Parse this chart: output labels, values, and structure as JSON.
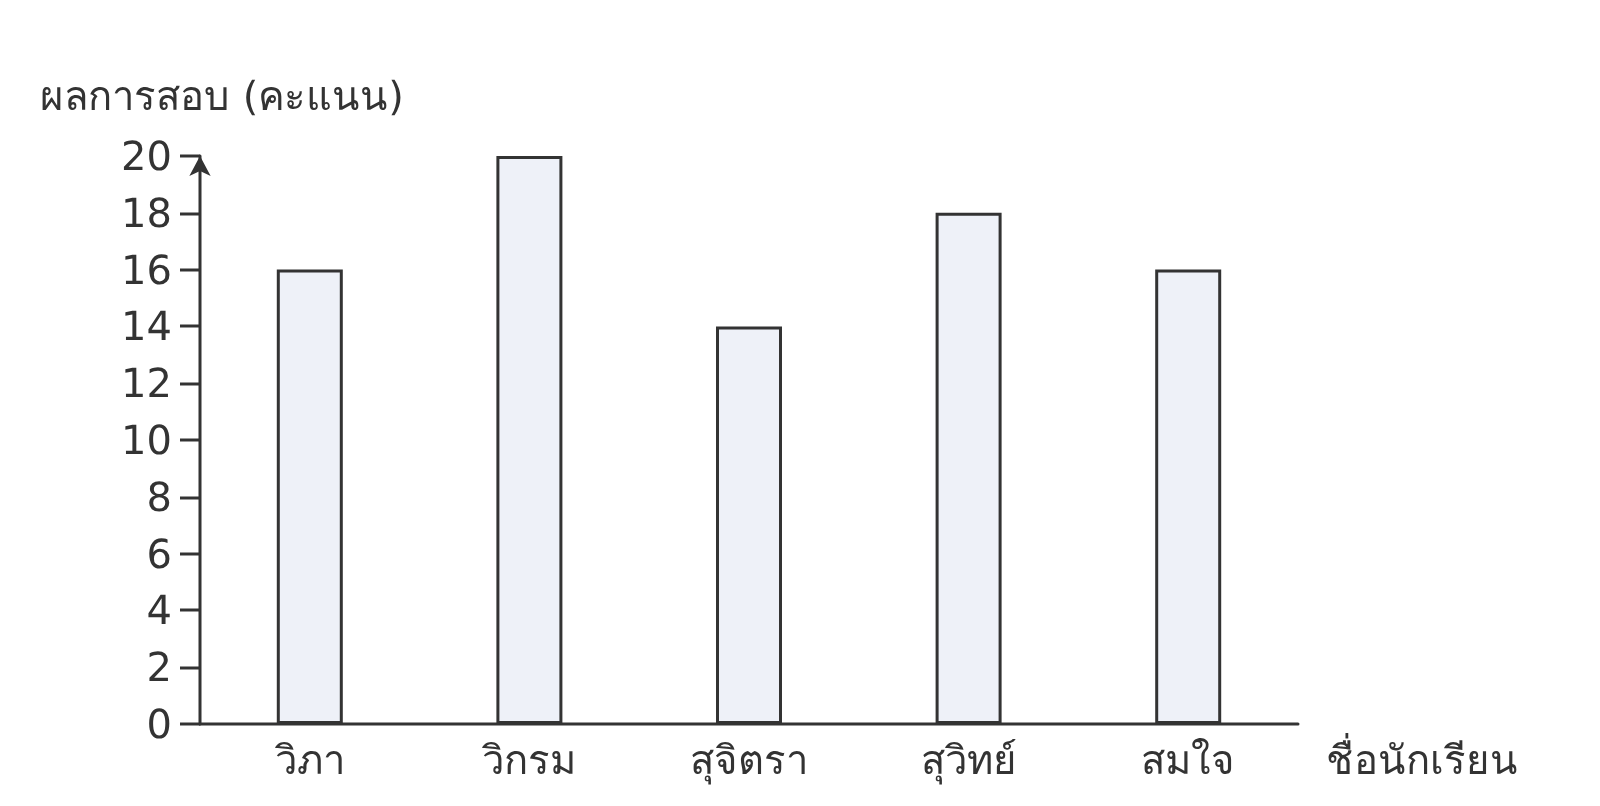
{
  "chart_data": {
    "type": "bar",
    "xlabel": "ชื่อนักเรียน",
    "ylabel": "ผลการสอบ (คะแนน)",
    "categories": [
      "วิภา",
      "วิกรม",
      "สุจิตรา",
      "สุวิทย์",
      "สมใจ"
    ],
    "values": [
      16,
      20,
      14,
      18,
      16
    ],
    "color": "#eef1f8",
    "ylim": [
      0,
      20
    ],
    "yticks": [
      0,
      2,
      4,
      6,
      8,
      10,
      12,
      14,
      16,
      18,
      20
    ],
    "grid": false
  }
}
